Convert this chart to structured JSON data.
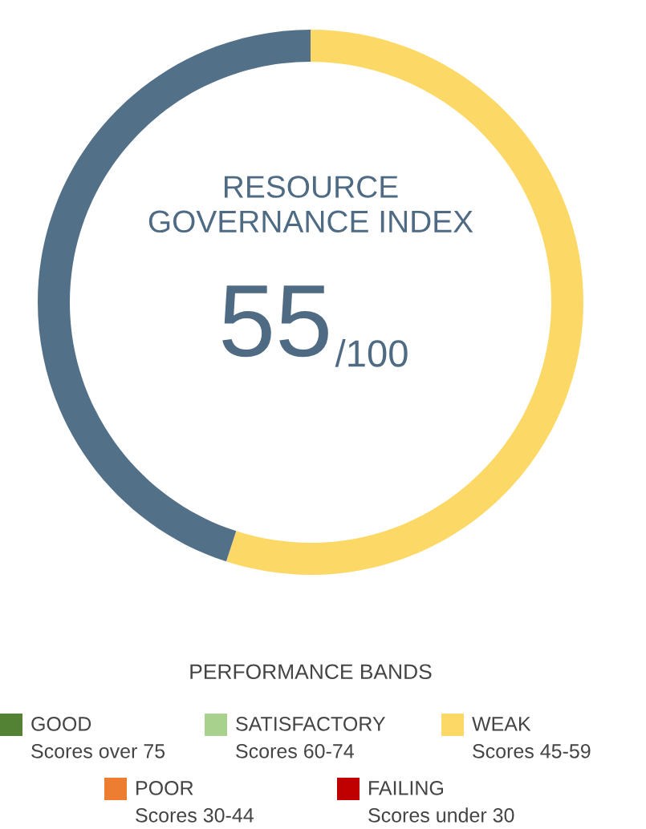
{
  "chart_data": [
    {
      "type": "donut",
      "title": "RESOURCE\nGOVERNANCE INDEX",
      "categories": [
        null,
        null
      ],
      "values": [
        55,
        45
      ],
      "colors": [
        "#fcd966",
        "#537089"
      ],
      "annotations": [
        "55",
        "/100"
      ]
    },
    {
      "type": "other",
      "legend_title": "PERFORMANCE BANDS",
      "series": [
        {
          "name": "GOOD",
          "color": "#548235"
        },
        {
          "name": "SATISFACTORY",
          "color": "#a9d18e"
        },
        {
          "name": "WEAK",
          "color": "#fcd966"
        },
        {
          "name": "POOR",
          "color": "#ed7d31"
        },
        {
          "name": "FAILING",
          "color": "#c00000"
        }
      ],
      "annotations": [
        "Scores over 75",
        "Scores 60-74",
        "Scores 45-59",
        "Scores 30-44",
        "Scores under 30"
      ]
    }
  ]
}
